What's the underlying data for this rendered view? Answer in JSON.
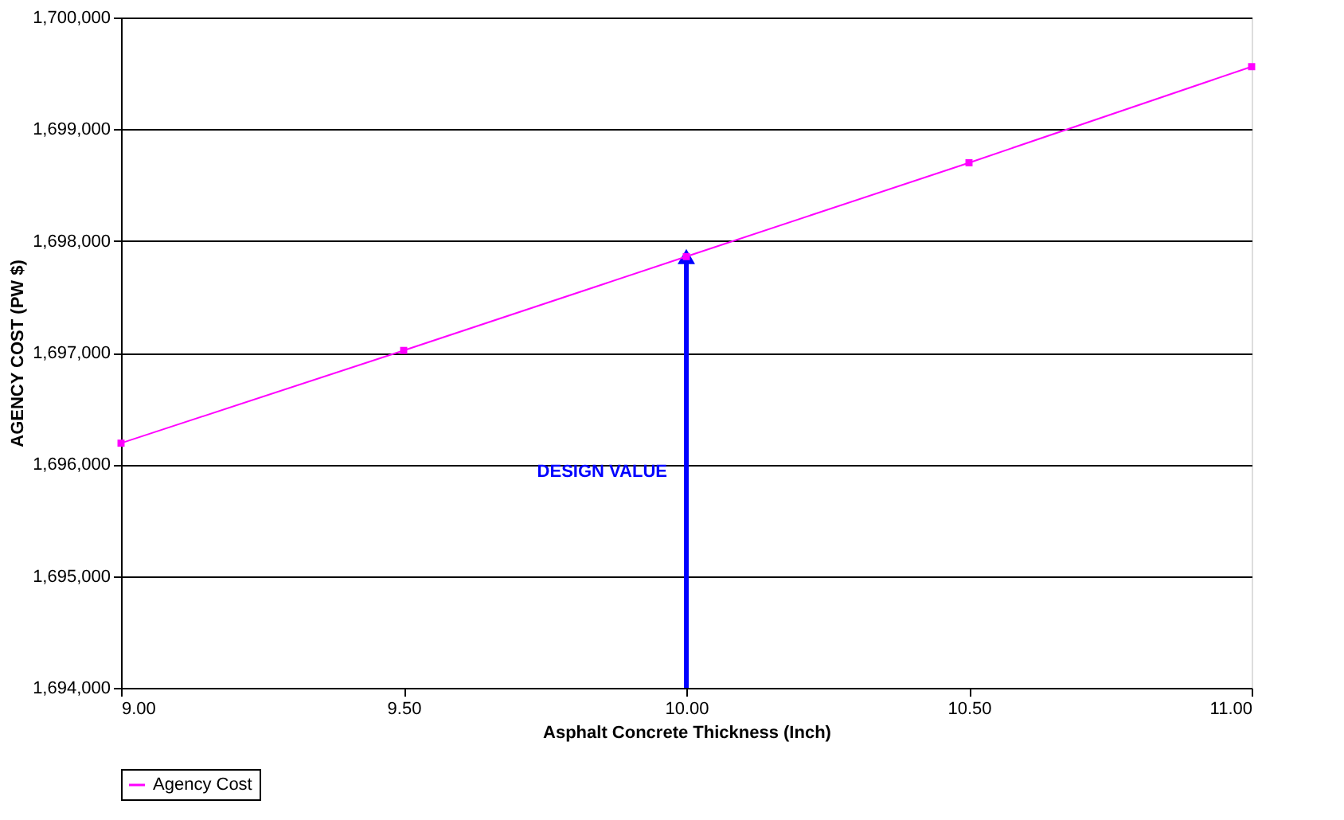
{
  "chart_data": {
    "type": "line",
    "xlabel": "Asphalt Concrete Thickness (Inch)",
    "ylabel": "AGENCY COST (PW $)",
    "x": [
      9.0,
      9.5,
      10.0,
      10.5,
      11.0
    ],
    "series": [
      {
        "name": "Agency Cost",
        "color": "#ff00ff",
        "values": [
          1696190,
          1697020,
          1697860,
          1698700,
          1699560
        ]
      }
    ],
    "xlim": [
      9.0,
      11.0
    ],
    "xticks": [
      {
        "value": 9.0,
        "label": "9.00"
      },
      {
        "value": 9.5,
        "label": "9.50"
      },
      {
        "value": 10.0,
        "label": "10.00"
      },
      {
        "value": 10.5,
        "label": "10.50"
      },
      {
        "value": 11.0,
        "label": "11.00"
      }
    ],
    "ylim": [
      1694000,
      1700000
    ],
    "yticks": [
      {
        "value": 1694000,
        "label": "1,694,000"
      },
      {
        "value": 1695000,
        "label": "1,695,000"
      },
      {
        "value": 1696000,
        "label": "1,696,000"
      },
      {
        "value": 1697000,
        "label": "1,697,000"
      },
      {
        "value": 1698000,
        "label": "1,698,000"
      },
      {
        "value": 1699000,
        "label": "1,699,000"
      },
      {
        "value": 1700000,
        "label": "1,700,000"
      }
    ],
    "ref_lines": [
      {
        "axis": "x",
        "value": 10.0,
        "label": "DESIGN VALUE",
        "color": "#0000ff"
      }
    ],
    "grid": "y",
    "legend": "bottom",
    "marker": "square",
    "line_style": "solid"
  }
}
